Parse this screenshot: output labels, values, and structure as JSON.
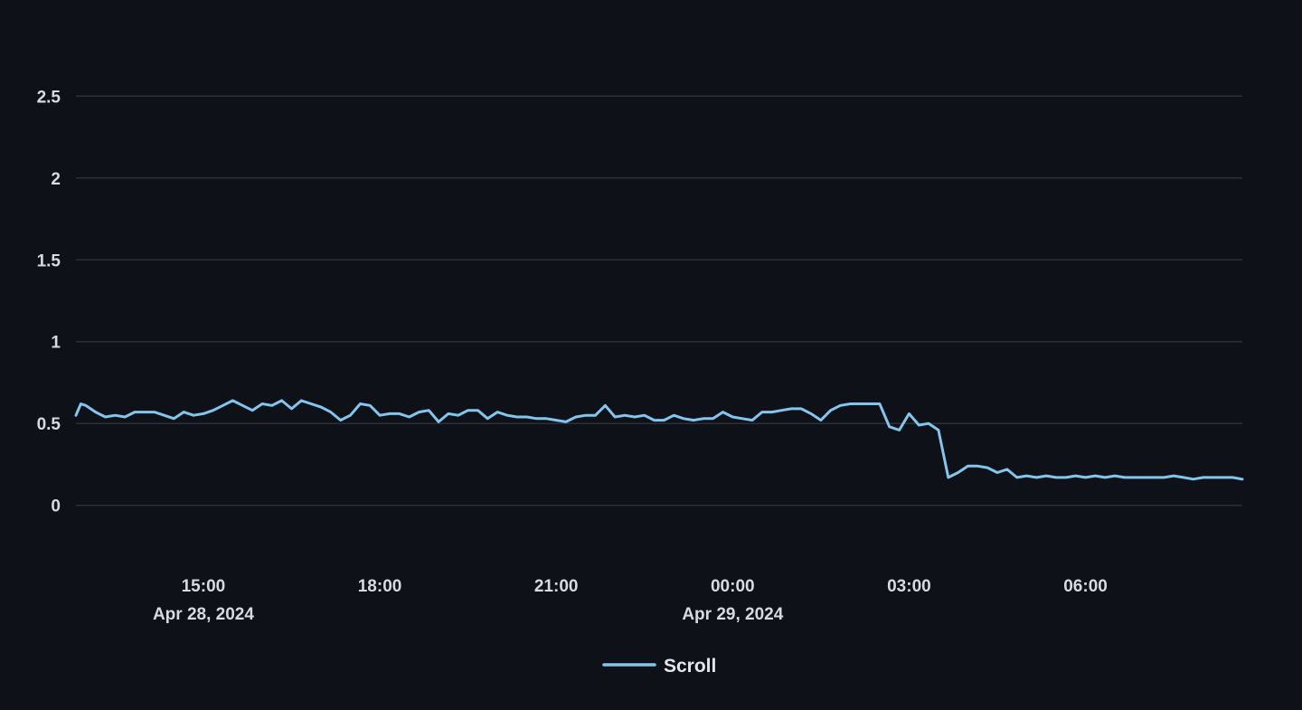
{
  "chart_data": {
    "type": "line",
    "title": "",
    "xlabel": "",
    "ylabel": "",
    "grid": true,
    "legend_position": "bottom-center",
    "ylim": [
      -0.3,
      2.8
    ],
    "xlim": [
      "2024-04-28T12:50",
      "2024-04-29T08:40"
    ],
    "y_ticks": [
      {
        "value": 0,
        "label": "0"
      },
      {
        "value": 0.5,
        "label": "0.5"
      },
      {
        "value": 1,
        "label": "1"
      },
      {
        "value": 1.5,
        "label": "1.5"
      },
      {
        "value": 2,
        "label": "2"
      },
      {
        "value": 2.5,
        "label": "2.5"
      }
    ],
    "x_ticks": [
      {
        "value": "2024-04-28T15:00",
        "time": "15:00",
        "date": "Apr 28, 2024"
      },
      {
        "value": "2024-04-28T18:00",
        "time": "18:00",
        "date": ""
      },
      {
        "value": "2024-04-28T21:00",
        "time": "21:00",
        "date": ""
      },
      {
        "value": "2024-04-29T00:00",
        "time": "00:00",
        "date": "Apr 29, 2024"
      },
      {
        "value": "2024-04-29T03:00",
        "time": "03:00",
        "date": ""
      },
      {
        "value": "2024-04-29T06:00",
        "time": "06:00",
        "date": ""
      }
    ],
    "colors": {
      "background": "#0e1118",
      "grid": "#2b2f39",
      "series": "#83c5ec"
    },
    "series": [
      {
        "name": "Scroll",
        "color": "#83c5ec",
        "x": [
          "2024-04-28T12:50",
          "2024-04-28T12:55",
          "2024-04-28T13:00",
          "2024-04-28T13:10",
          "2024-04-28T13:20",
          "2024-04-28T13:30",
          "2024-04-28T13:40",
          "2024-04-28T13:50",
          "2024-04-28T14:00",
          "2024-04-28T14:10",
          "2024-04-28T14:20",
          "2024-04-28T14:30",
          "2024-04-28T14:40",
          "2024-04-28T14:50",
          "2024-04-28T15:00",
          "2024-04-28T15:10",
          "2024-04-28T15:20",
          "2024-04-28T15:30",
          "2024-04-28T15:40",
          "2024-04-28T15:50",
          "2024-04-28T16:00",
          "2024-04-28T16:10",
          "2024-04-28T16:20",
          "2024-04-28T16:30",
          "2024-04-28T16:40",
          "2024-04-28T16:50",
          "2024-04-28T17:00",
          "2024-04-28T17:10",
          "2024-04-28T17:20",
          "2024-04-28T17:30",
          "2024-04-28T17:40",
          "2024-04-28T17:50",
          "2024-04-28T18:00",
          "2024-04-28T18:10",
          "2024-04-28T18:20",
          "2024-04-28T18:30",
          "2024-04-28T18:40",
          "2024-04-28T18:50",
          "2024-04-28T19:00",
          "2024-04-28T19:10",
          "2024-04-28T19:20",
          "2024-04-28T19:30",
          "2024-04-28T19:40",
          "2024-04-28T19:50",
          "2024-04-28T20:00",
          "2024-04-28T20:10",
          "2024-04-28T20:20",
          "2024-04-28T20:30",
          "2024-04-28T20:40",
          "2024-04-28T20:50",
          "2024-04-28T21:00",
          "2024-04-28T21:10",
          "2024-04-28T21:20",
          "2024-04-28T21:30",
          "2024-04-28T21:40",
          "2024-04-28T21:50",
          "2024-04-28T22:00",
          "2024-04-28T22:10",
          "2024-04-28T22:20",
          "2024-04-28T22:30",
          "2024-04-28T22:40",
          "2024-04-28T22:50",
          "2024-04-28T23:00",
          "2024-04-28T23:10",
          "2024-04-28T23:20",
          "2024-04-28T23:30",
          "2024-04-28T23:40",
          "2024-04-28T23:50",
          "2024-04-29T00:00",
          "2024-04-29T00:10",
          "2024-04-29T00:20",
          "2024-04-29T00:30",
          "2024-04-29T00:40",
          "2024-04-29T00:50",
          "2024-04-29T01:00",
          "2024-04-29T01:10",
          "2024-04-29T01:20",
          "2024-04-29T01:30",
          "2024-04-29T01:40",
          "2024-04-29T01:50",
          "2024-04-29T02:00",
          "2024-04-29T02:10",
          "2024-04-29T02:20",
          "2024-04-29T02:30",
          "2024-04-29T02:40",
          "2024-04-29T02:50",
          "2024-04-29T03:00",
          "2024-04-29T03:10",
          "2024-04-29T03:20",
          "2024-04-29T03:30",
          "2024-04-29T03:40",
          "2024-04-29T03:50",
          "2024-04-29T04:00",
          "2024-04-29T04:10",
          "2024-04-29T04:20",
          "2024-04-29T04:30",
          "2024-04-29T04:40",
          "2024-04-29T04:50",
          "2024-04-29T05:00",
          "2024-04-29T05:10",
          "2024-04-29T05:20",
          "2024-04-29T05:30",
          "2024-04-29T05:40",
          "2024-04-29T05:50",
          "2024-04-29T06:00",
          "2024-04-29T06:10",
          "2024-04-29T06:20",
          "2024-04-29T06:30",
          "2024-04-29T06:40",
          "2024-04-29T06:50",
          "2024-04-29T07:00",
          "2024-04-29T07:10",
          "2024-04-29T07:20",
          "2024-04-29T07:30",
          "2024-04-29T07:40",
          "2024-04-29T07:50",
          "2024-04-29T08:00",
          "2024-04-29T08:10",
          "2024-04-29T08:20",
          "2024-04-29T08:30",
          "2024-04-29T08:40"
        ],
        "values": [
          0.55,
          0.62,
          0.61,
          0.57,
          0.54,
          0.55,
          0.54,
          0.57,
          0.57,
          0.57,
          0.55,
          0.53,
          0.57,
          0.55,
          0.56,
          0.58,
          0.61,
          0.64,
          0.61,
          0.58,
          0.62,
          0.61,
          0.64,
          0.59,
          0.64,
          0.62,
          0.6,
          0.57,
          0.52,
          0.55,
          0.62,
          0.61,
          0.55,
          0.56,
          0.56,
          0.54,
          0.57,
          0.58,
          0.51,
          0.56,
          0.55,
          0.58,
          0.58,
          0.53,
          0.57,
          0.55,
          0.54,
          0.54,
          0.53,
          0.53,
          0.52,
          0.51,
          0.54,
          0.55,
          0.55,
          0.61,
          0.54,
          0.55,
          0.54,
          0.55,
          0.52,
          0.52,
          0.55,
          0.53,
          0.52,
          0.53,
          0.53,
          0.57,
          0.54,
          0.53,
          0.52,
          0.57,
          0.57,
          0.58,
          0.59,
          0.59,
          0.56,
          0.52,
          0.58,
          0.61,
          0.62,
          0.62,
          0.62,
          0.62,
          0.48,
          0.46,
          0.56,
          0.49,
          0.5,
          0.46,
          0.17,
          0.2,
          0.24,
          0.24,
          0.23,
          0.2,
          0.22,
          0.17,
          0.18,
          0.17,
          0.18,
          0.17,
          0.17,
          0.18,
          0.17,
          0.18,
          0.17,
          0.18,
          0.17,
          0.17,
          0.17,
          0.17,
          0.17,
          0.18,
          0.17,
          0.16,
          0.17,
          0.17,
          0.17,
          0.17,
          0.16
        ]
      }
    ]
  }
}
